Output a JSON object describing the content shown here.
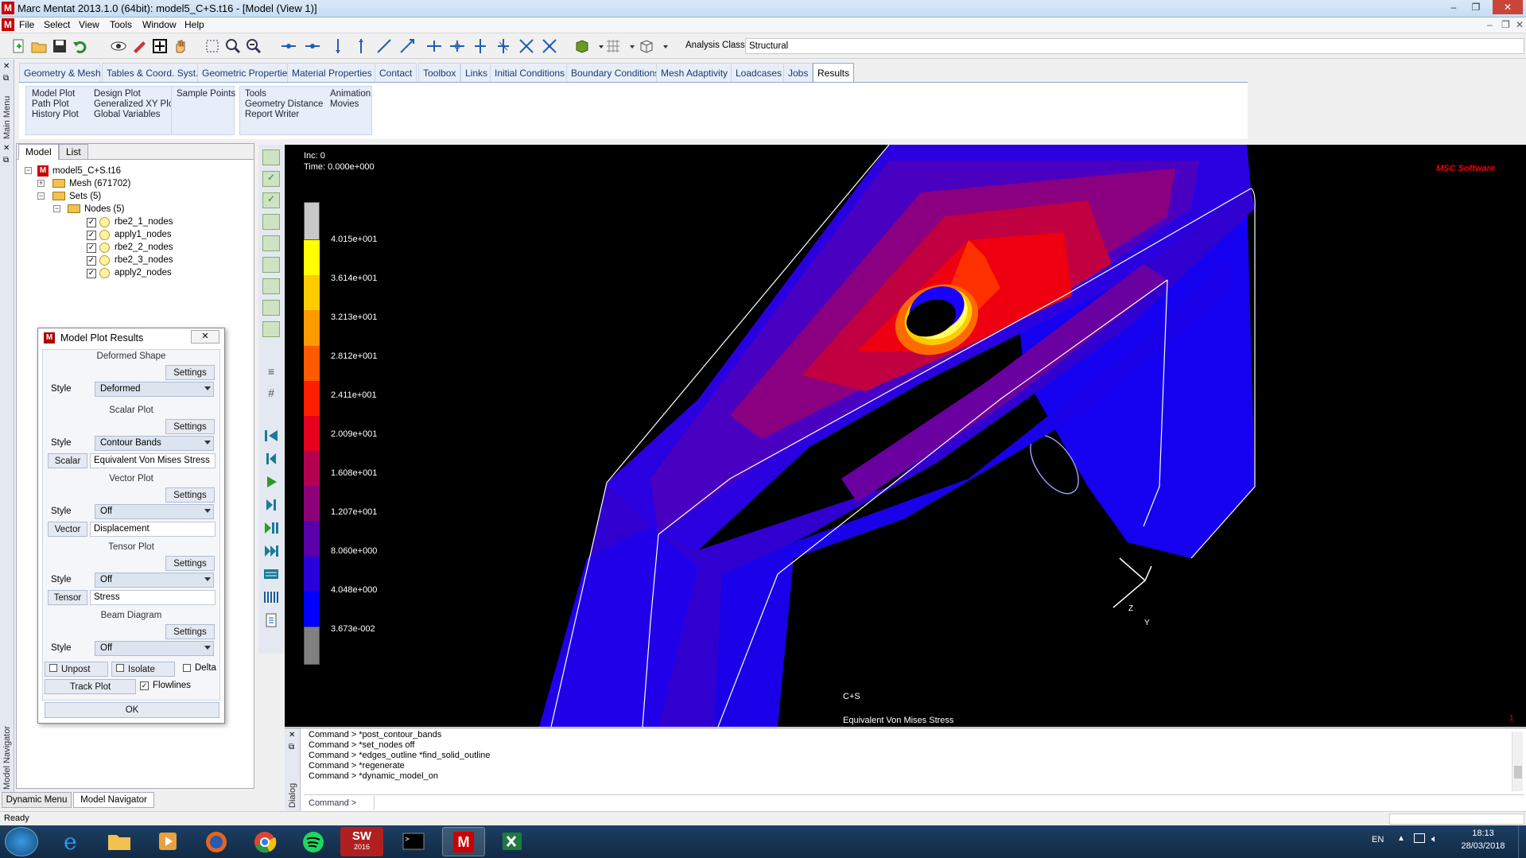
{
  "window": {
    "title": "Marc Mentat 2013.1.0 (64bit): model5_C+S.t16 - [Model (View 1)]",
    "minimize": "–",
    "maximize": "❐",
    "close": "✕"
  },
  "menu": [
    "File",
    "Select",
    "View",
    "Tools",
    "Window",
    "Help"
  ],
  "toolbar": {
    "analysis_class_label": "Analysis Class",
    "analysis_class_value": "Structural"
  },
  "tabs": [
    "Geometry & Mesh",
    "Tables & Coord. Syst.",
    "Geometric Properties",
    "Material Properties",
    "Contact",
    "Toolbox",
    "Links",
    "Initial Conditions",
    "Boundary Conditions",
    "Mesh Adaptivity",
    "Loadcases",
    "Jobs",
    "Results"
  ],
  "ribbon": {
    "group1": [
      "Model Plot",
      "Path Plot",
      "History Plot",
      "Design Plot",
      "Generalized XY Plot",
      "Global Variables"
    ],
    "group2": [
      "Sample Points"
    ],
    "group3": [
      "Tools",
      "Geometry Distance",
      "Report Writer",
      "Animation",
      "Movies"
    ]
  },
  "left_strip": {
    "main_menu": "Main Menu",
    "model_navigator": "Model Navigator"
  },
  "navigator": {
    "tabs": [
      "Model",
      "List"
    ],
    "root": "model5_C+S.t16",
    "mesh": "Mesh (671702)",
    "sets": "Sets (5)",
    "nodes": "Nodes (5)",
    "node_sets": [
      "rbe2_1_nodes",
      "apply1_nodes",
      "rbe2_2_nodes",
      "rbe2_3_nodes",
      "apply2_nodes"
    ]
  },
  "dialog": {
    "title": "Model Plot Results",
    "deformed_shape": "Deformed Shape",
    "settings": "Settings",
    "style": "Style",
    "deformed_style": "Deformed",
    "scalar_plot": "Scalar Plot",
    "scalar_style": "Contour Bands",
    "scalar_btn": "Scalar",
    "scalar_value": "Equivalent Von Mises Stress",
    "vector_plot": "Vector Plot",
    "vector_style": "Off",
    "vector_btn": "Vector",
    "vector_value": "Displacement",
    "tensor_plot": "Tensor Plot",
    "tensor_style": "Off",
    "tensor_btn": "Tensor",
    "tensor_value": "Stress",
    "beam_diagram": "Beam Diagram",
    "beam_style": "Off",
    "unpost": "Unpost",
    "isolate": "Isolate",
    "delta": "Delta",
    "track_plot": "Track Plot",
    "flowlines": "Flowlines",
    "ok": "OK"
  },
  "bottom_tabs": [
    "Dynamic Menu",
    "Model Navigator"
  ],
  "viewport": {
    "inc": "Inc:  0",
    "time": "Time:  0.000e+000",
    "logo": "MSC Software",
    "label_case": "C+S",
    "label_scalar": "Equivalent Von Mises Stress",
    "corner": "1",
    "legend": [
      {
        "label": "4.015e+001",
        "color": "#ffff00"
      },
      {
        "label": "3.614e+001",
        "color": "#ffcc00"
      },
      {
        "label": "3.213e+001",
        "color": "#ff9900"
      },
      {
        "label": "2.812e+001",
        "color": "#ff5a00"
      },
      {
        "label": "2.411e+001",
        "color": "#ff1e00"
      },
      {
        "label": "2.009e+001",
        "color": "#e6001e"
      },
      {
        "label": "1.608e+001",
        "color": "#b40050"
      },
      {
        "label": "1.207e+001",
        "color": "#8c0078"
      },
      {
        "label": "8.060e+000",
        "color": "#5a00aa"
      },
      {
        "label": "4.048e+000",
        "color": "#2800dc"
      },
      {
        "label": "3.673e-002",
        "color": "#0000ff"
      }
    ],
    "legend_top_color": "#c8c8c8",
    "legend_bottom_color": "#808080"
  },
  "command_log": [
    "Command > *post_contour_bands",
    "Command > *set_nodes off",
    "Command > *edges_outline *find_solid_outline",
    "Command > *regenerate",
    "Command > *dynamic_model_on"
  ],
  "command_prompt": "Command >",
  "dialog_side_label": "Dialog",
  "status": "Ready",
  "taskbar": {
    "lang": "EN",
    "time": "18:13",
    "date": "28/03/2018",
    "sw_label": "SW",
    "sw_year": "2016",
    "marc": "M"
  }
}
